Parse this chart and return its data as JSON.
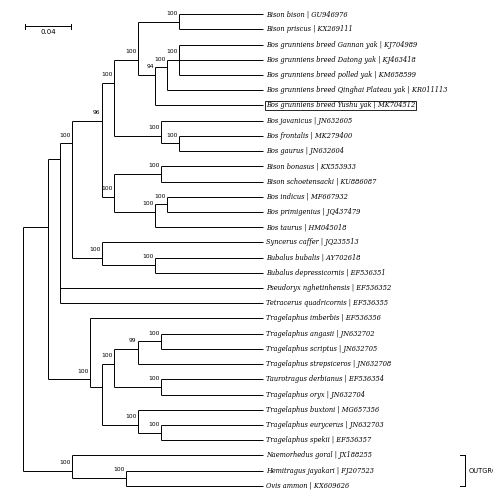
{
  "figsize": [
    4.93,
    5.0
  ],
  "dpi": 100,
  "bg_color": "#ffffff",
  "taxa": [
    {
      "name": "Bison bison | GU946976",
      "y": 1,
      "boxed": false
    },
    {
      "name": "Bison priscus | KX269111",
      "y": 2,
      "boxed": false
    },
    {
      "name": "Bos grunniens breed Gannan yak | KJ704989",
      "y": 3,
      "boxed": false
    },
    {
      "name": "Bos grunniens breed Datong yak | KJ463418",
      "y": 4,
      "boxed": false
    },
    {
      "name": "Bos grunniens breed polled yak | KM658599",
      "y": 5,
      "boxed": false
    },
    {
      "name": "Bos grunniens breed Qinghai Plateau yak | KR011113",
      "y": 6,
      "boxed": false
    },
    {
      "name": "Bos grunniens breed Yushu yak | MK704512",
      "y": 7,
      "boxed": true
    },
    {
      "name": "Bos javanicus | JN632605",
      "y": 8,
      "boxed": false
    },
    {
      "name": "Bos frontalis | MK279400",
      "y": 9,
      "boxed": false
    },
    {
      "name": "Bos gaurus | JN632604",
      "y": 10,
      "boxed": false
    },
    {
      "name": "Bison bonasus | KX553933",
      "y": 11,
      "boxed": false
    },
    {
      "name": "Bison schoetensacki | KU886087",
      "y": 12,
      "boxed": false
    },
    {
      "name": "Bos indicus | MF667932",
      "y": 13,
      "boxed": false
    },
    {
      "name": "Bos primigenius | JQ437479",
      "y": 14,
      "boxed": false
    },
    {
      "name": "Bos taurus | HM045018",
      "y": 15,
      "boxed": false
    },
    {
      "name": "Syncerus caffer | JQ235513",
      "y": 16,
      "boxed": false
    },
    {
      "name": "Bubalus bubalis | AY702618",
      "y": 17,
      "boxed": false
    },
    {
      "name": "Bubalus depressicornis | EF536351",
      "y": 18,
      "boxed": false
    },
    {
      "name": "Pseudoryx nghetinhensis | EF536352",
      "y": 19,
      "boxed": false
    },
    {
      "name": "Tetracerus quadricornis | EF536355",
      "y": 20,
      "boxed": false
    },
    {
      "name": "Tragelaphus imberbis | EF536356",
      "y": 21,
      "boxed": false
    },
    {
      "name": "Tragelaphus angasii | JN632702",
      "y": 22,
      "boxed": false
    },
    {
      "name": "Tragelaphus scriptus | JN632705",
      "y": 23,
      "boxed": false
    },
    {
      "name": "Tragelaphus strepsiceros | JN632708",
      "y": 24,
      "boxed": false
    },
    {
      "name": "Taurotragus derbianus | EF536354",
      "y": 25,
      "boxed": false
    },
    {
      "name": "Tragelaphus oryx | JN632704",
      "y": 26,
      "boxed": false
    },
    {
      "name": "Tragelaphus buxtoni | MG657356",
      "y": 27,
      "boxed": false
    },
    {
      "name": "Tragelaphus eurycerus | JN632703",
      "y": 28,
      "boxed": false
    },
    {
      "name": "Tragelaphus spekii | EF536357",
      "y": 29,
      "boxed": false
    },
    {
      "name": "Naemorhedus goral | JX188255",
      "y": 30,
      "boxed": false
    },
    {
      "name": "Hemitragus jayakari | FJ207523",
      "y": 31,
      "boxed": false
    },
    {
      "name": "Ovis ammon | KX609626",
      "y": 32,
      "boxed": false
    }
  ],
  "line_color": "#000000",
  "line_width": 0.7,
  "font_size_taxa": 4.8,
  "font_size_support": 4.3,
  "font_size_scalebar": 5.0
}
